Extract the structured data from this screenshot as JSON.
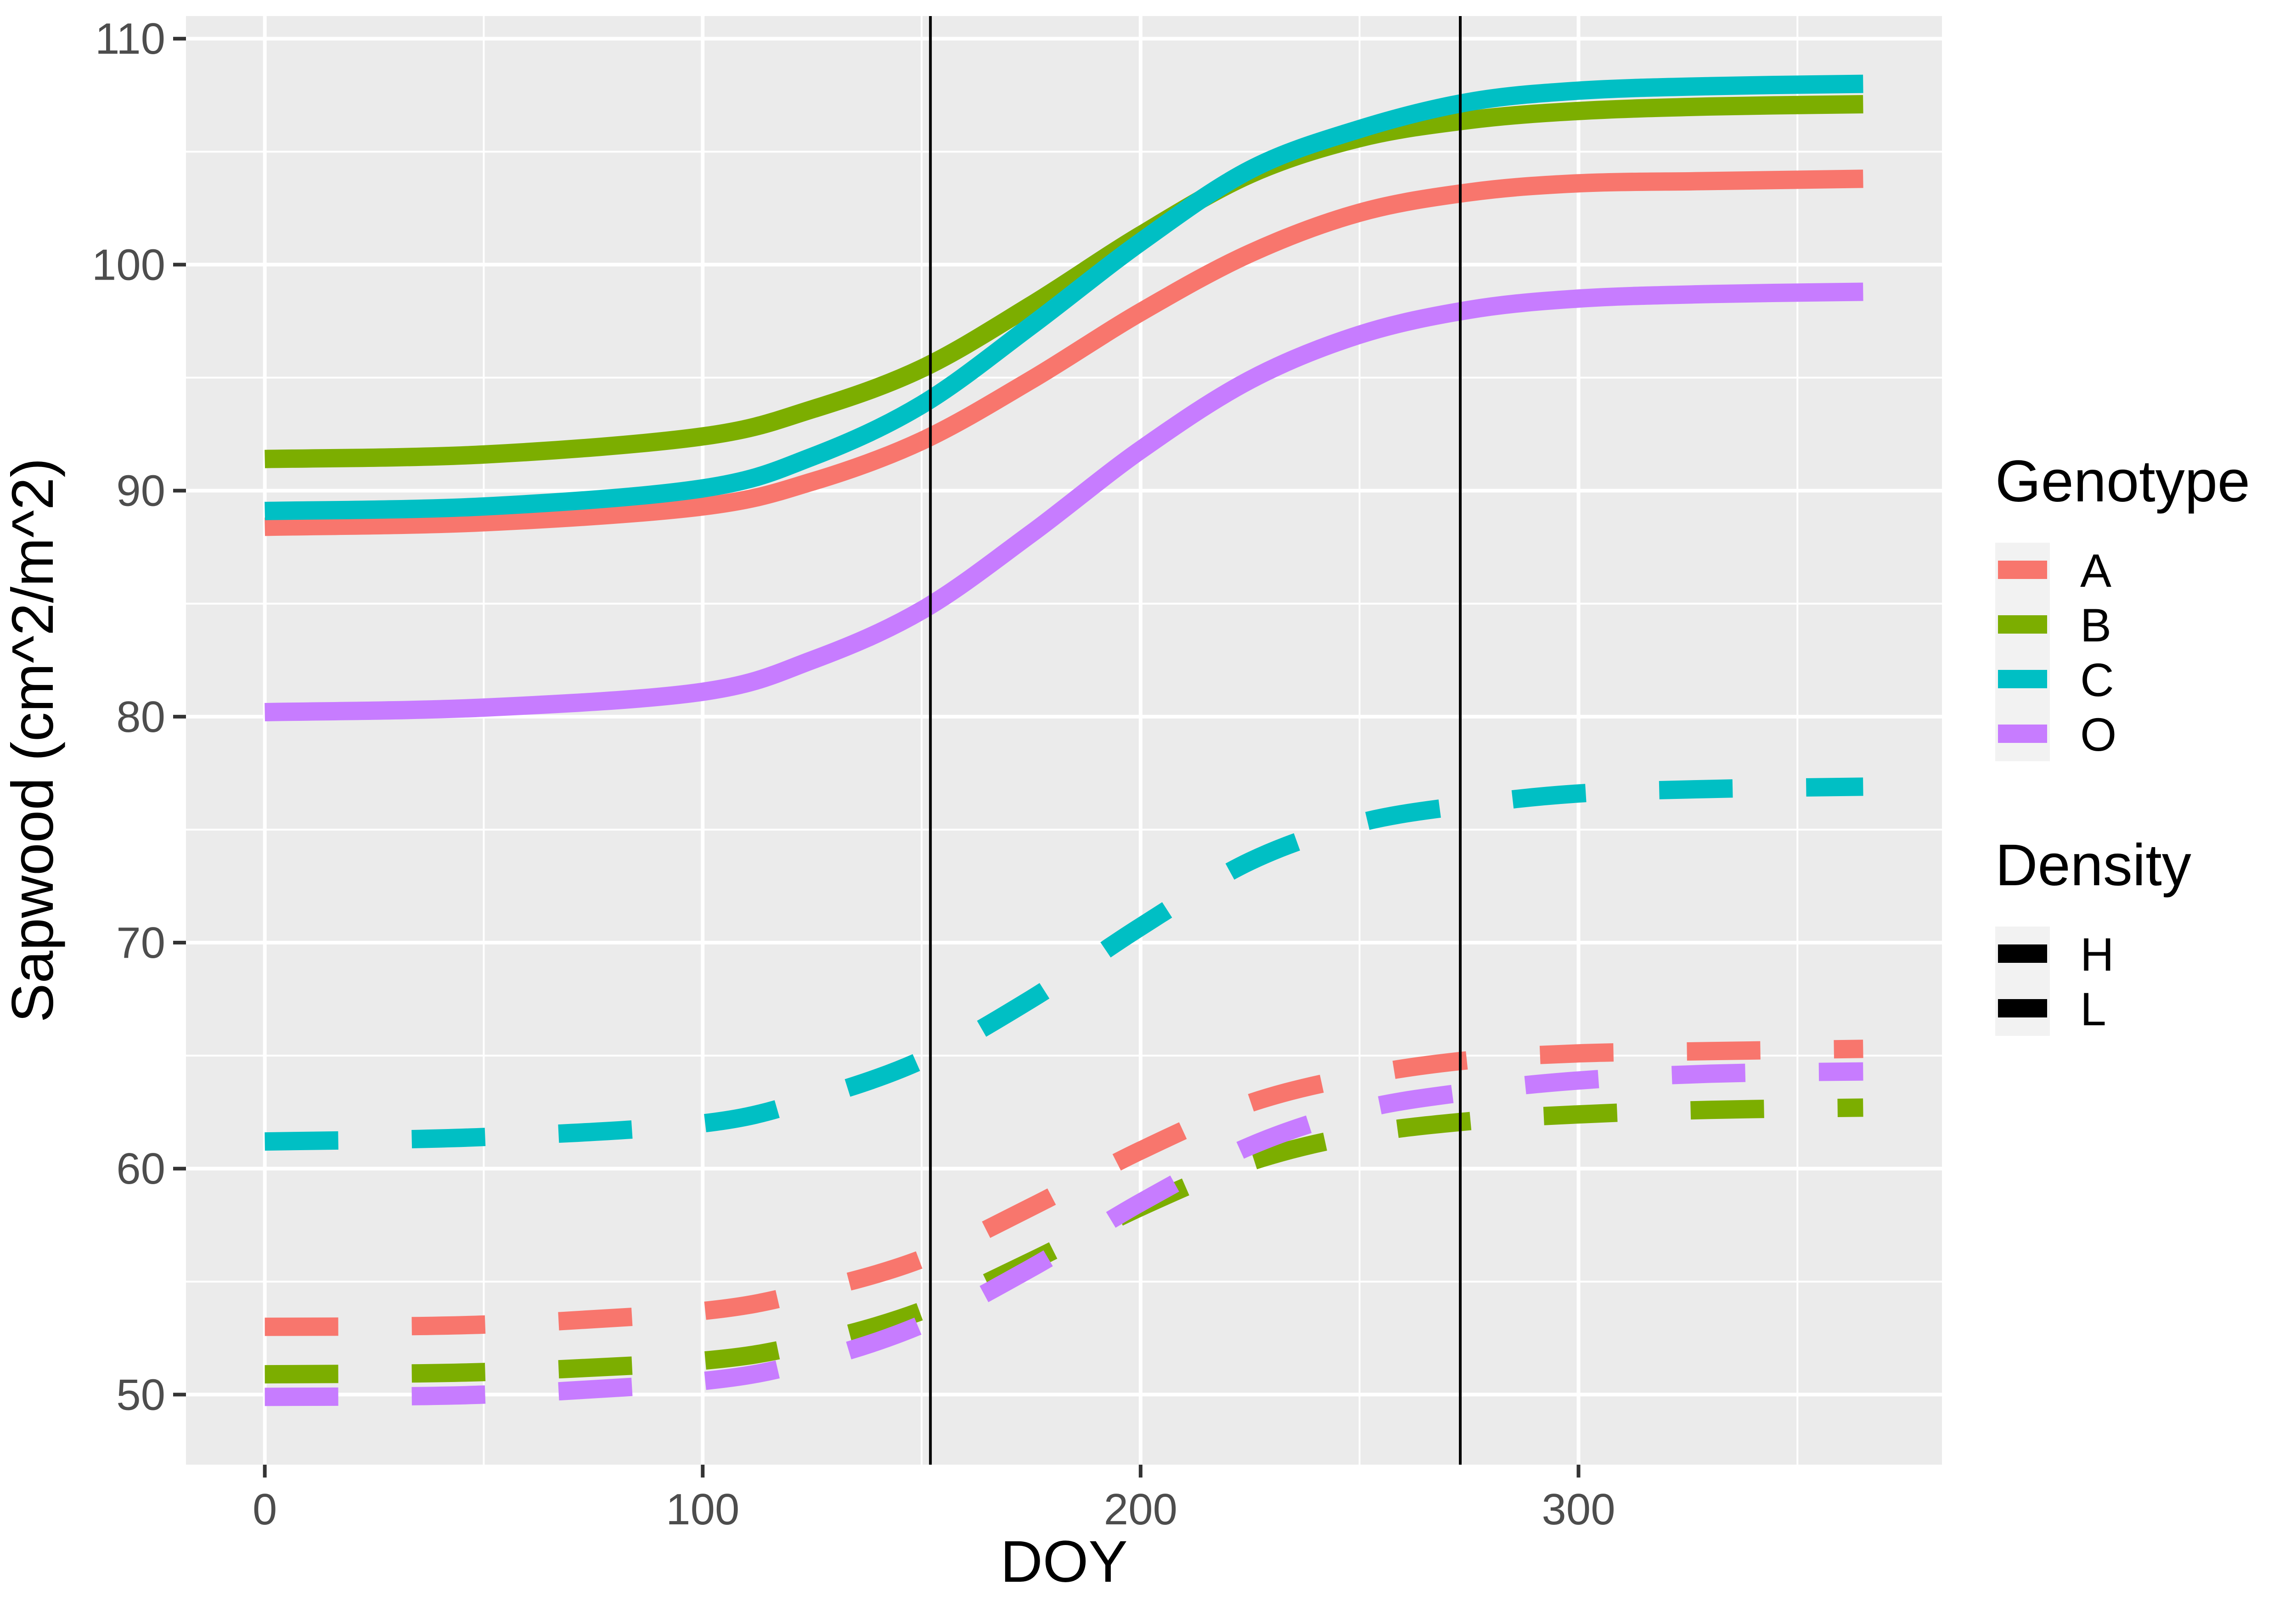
{
  "chart_data": {
    "type": "line",
    "title": "",
    "xlabel": "DOY",
    "ylabel": "Sapwood (cm^2/m^2)",
    "xlim": [
      -18,
      383
    ],
    "ylim": [
      46.9,
      111
    ],
    "xticks": [
      0,
      100,
      200,
      300
    ],
    "yticks": [
      50,
      60,
      70,
      80,
      90,
      100,
      110
    ],
    "x_minor_ticks": [
      50,
      150,
      250,
      350
    ],
    "y_minor_ticks": [
      55,
      65,
      75,
      85,
      95,
      105
    ],
    "grid": true,
    "vlines": [
      152,
      273
    ],
    "legend_placement": "right",
    "legends": [
      {
        "title": "Genotype",
        "items": [
          {
            "label": "A",
            "color": "#F8766D"
          },
          {
            "label": "B",
            "color": "#7CAE00"
          },
          {
            "label": "C",
            "color": "#00BFC4"
          },
          {
            "label": "O",
            "color": "#C77CFF"
          }
        ]
      },
      {
        "title": "Density",
        "items": [
          {
            "label": "H",
            "linetype": "solid"
          },
          {
            "label": "L",
            "linetype": "dashed"
          }
        ]
      }
    ],
    "series": [
      {
        "genotype": "A",
        "density": "H",
        "color": "#F8766D",
        "linetype": "solid",
        "x": [
          0,
          50,
          100,
          125,
          150,
          175,
          200,
          225,
          250,
          275,
          300,
          330,
          365
        ],
        "y": [
          88.4,
          88.6,
          89.3,
          90.4,
          92.2,
          94.9,
          97.9,
          100.5,
          102.3,
          103.2,
          103.6,
          103.7,
          103.8
        ]
      },
      {
        "genotype": "B",
        "density": "H",
        "color": "#7CAE00",
        "linetype": "solid",
        "x": [
          0,
          50,
          100,
          125,
          150,
          175,
          200,
          225,
          250,
          275,
          300,
          330,
          365
        ],
        "y": [
          91.4,
          91.6,
          92.4,
          93.6,
          95.4,
          98.2,
          101.3,
          104.0,
          105.6,
          106.4,
          106.8,
          107.0,
          107.1
        ]
      },
      {
        "genotype": "C",
        "density": "H",
        "color": "#00BFC4",
        "linetype": "solid",
        "x": [
          0,
          50,
          100,
          125,
          150,
          175,
          200,
          225,
          250,
          275,
          300,
          330,
          365
        ],
        "y": [
          89.1,
          89.3,
          90.1,
          91.5,
          93.8,
          97.3,
          101.0,
          104.2,
          106.0,
          107.2,
          107.7,
          107.9,
          108.0
        ]
      },
      {
        "genotype": "O",
        "density": "H",
        "color": "#C77CFF",
        "linetype": "solid",
        "x": [
          0,
          50,
          100,
          125,
          150,
          175,
          200,
          225,
          250,
          275,
          300,
          330,
          365
        ],
        "y": [
          80.2,
          80.4,
          81.1,
          82.5,
          84.7,
          88.1,
          91.8,
          94.9,
          96.9,
          98.0,
          98.5,
          98.7,
          98.8
        ]
      },
      {
        "genotype": "A",
        "density": "L",
        "color": "#F8766D",
        "linetype": "dashed",
        "x": [
          0,
          50,
          100,
          125,
          150,
          175,
          200,
          225,
          250,
          275,
          300,
          330,
          365
        ],
        "y": [
          53.0,
          53.1,
          53.7,
          54.6,
          56.0,
          58.3,
          60.8,
          62.9,
          64.1,
          64.8,
          65.1,
          65.2,
          65.3
        ]
      },
      {
        "genotype": "B",
        "density": "L",
        "color": "#7CAE00",
        "linetype": "dashed",
        "x": [
          0,
          50,
          100,
          125,
          150,
          175,
          200,
          225,
          250,
          275,
          300,
          330,
          365
        ],
        "y": [
          50.9,
          51.0,
          51.5,
          52.3,
          53.7,
          55.9,
          58.3,
          60.3,
          61.5,
          62.1,
          62.4,
          62.6,
          62.7
        ]
      },
      {
        "genotype": "C",
        "density": "L",
        "color": "#00BFC4",
        "linetype": "dashed",
        "x": [
          0,
          50,
          100,
          125,
          150,
          175,
          200,
          225,
          250,
          275,
          300,
          330,
          365
        ],
        "y": [
          61.2,
          61.4,
          62.0,
          63.1,
          64.8,
          67.5,
          70.7,
          73.6,
          75.3,
          76.1,
          76.6,
          76.8,
          76.9
        ]
      },
      {
        "genotype": "O",
        "density": "L",
        "color": "#C77CFF",
        "linetype": "dashed",
        "x": [
          0,
          50,
          100,
          125,
          150,
          175,
          200,
          225,
          250,
          275,
          300,
          330,
          365
        ],
        "y": [
          49.9,
          50.0,
          50.6,
          51.5,
          53.1,
          55.6,
          58.5,
          61.0,
          62.6,
          63.4,
          63.9,
          64.2,
          64.3
        ]
      }
    ]
  }
}
